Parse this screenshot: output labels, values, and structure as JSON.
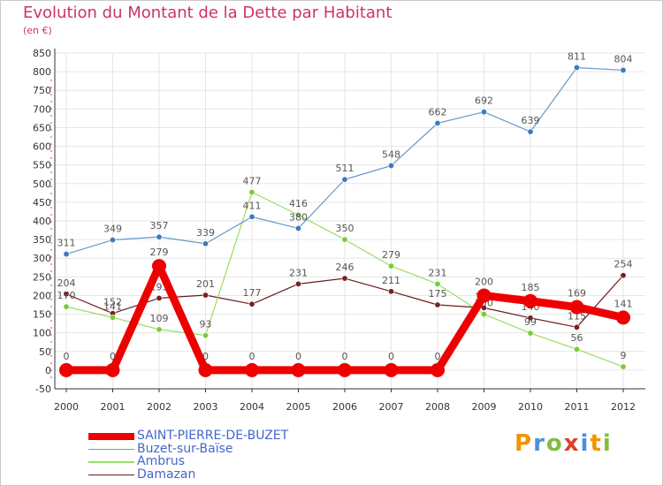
{
  "header": {
    "title": "Evolution du Montant de la Dette par Habitant",
    "subtitle": "(en €)"
  },
  "brand": {
    "letters": [
      "P",
      "r",
      "o",
      "x",
      "i",
      "t",
      "i"
    ],
    "colors": [
      "#f29400",
      "#4a90d9",
      "#7fbf3f",
      "#d9402b",
      "#4a90d9",
      "#f29400",
      "#7fbf3f"
    ]
  },
  "chart_data": {
    "type": "line",
    "title": "Evolution du Montant de la Dette par Habitant",
    "subtitle": "(en €)",
    "x": [
      "2000",
      "2001",
      "2002",
      "2003",
      "2004",
      "2005",
      "2006",
      "2007",
      "2008",
      "2009",
      "2010",
      "2011",
      "2012"
    ],
    "ylim": [
      -50,
      850
    ],
    "yticks": [
      -50,
      0,
      50,
      100,
      150,
      200,
      250,
      300,
      350,
      400,
      450,
      500,
      550,
      600,
      650,
      700,
      750,
      800,
      850
    ],
    "grid": true,
    "legend_position": "bottom-left",
    "series": [
      {
        "name": "Damazan",
        "color": "#6b1a1a",
        "marker": "#7a2020",
        "emphasis": false,
        "values": [
          204,
          152,
          193,
          201,
          177,
          231,
          246,
          211,
          175,
          167,
          140,
          115,
          254
        ],
        "labels": [
          "204",
          "152",
          "193",
          "201",
          "177",
          "231",
          "246",
          "211",
          "175",
          "167",
          "140",
          "115",
          "254"
        ]
      },
      {
        "name": "Ambrus",
        "color": "#99dd66",
        "marker": "#77cc33",
        "emphasis": false,
        "values": [
          170,
          141,
          109,
          93,
          477,
          416,
          350,
          279,
          231,
          150,
          99,
          56,
          9
        ],
        "labels": [
          "170",
          "141",
          "109",
          "93",
          "477",
          "416",
          "350",
          "279",
          "231",
          "150",
          "99",
          "56",
          "9"
        ]
      },
      {
        "name": "Buzet-sur-Baïse",
        "color": "#6699cc",
        "marker": "#3a7abf",
        "emphasis": false,
        "values": [
          311,
          349,
          357,
          339,
          411,
          380,
          511,
          548,
          662,
          692,
          639,
          811,
          804
        ],
        "labels": [
          "311",
          "349",
          "357",
          "339",
          "411",
          "380",
          "511",
          "548",
          "662",
          "692",
          "639",
          "811",
          "804"
        ]
      },
      {
        "name": "SAINT-PIERRE-DE-BUZET",
        "color": "#ee0000",
        "marker": "#ee0000",
        "emphasis": true,
        "values": [
          0,
          0,
          279,
          0,
          0,
          0,
          0,
          0,
          0,
          200,
          185,
          169,
          141
        ],
        "labels": [
          "0",
          "0",
          "279",
          "0",
          "0",
          "0",
          "0",
          "0",
          "0",
          "200",
          "185",
          "169",
          "141"
        ]
      }
    ],
    "legend_order": [
      "SAINT-PIERRE-DE-BUZET",
      "Buzet-sur-Baïse",
      "Ambrus",
      "Damazan"
    ]
  }
}
